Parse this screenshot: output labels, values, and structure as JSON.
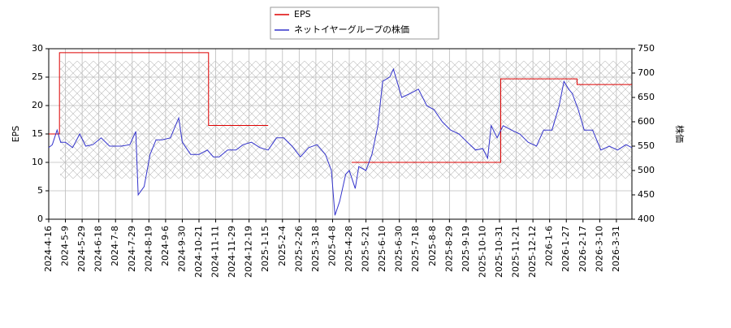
{
  "chart_data": {
    "type": "line",
    "ylabel": "EPS",
    "y2label": "株価",
    "xlim": [
      0,
      489
    ],
    "xticks": [
      {
        "value": 0,
        "label": "2024-4-16"
      },
      {
        "value": 14,
        "label": "2024-5-9"
      },
      {
        "value": 28,
        "label": "2024-5-29"
      },
      {
        "value": 42,
        "label": "2024-6-18"
      },
      {
        "value": 56,
        "label": "2024-7-8"
      },
      {
        "value": 70,
        "label": "2024-7-29"
      },
      {
        "value": 84,
        "label": "2024-8-19"
      },
      {
        "value": 98,
        "label": "2024-9-6"
      },
      {
        "value": 112,
        "label": "2024-9-30"
      },
      {
        "value": 126,
        "label": "2024-10-21"
      },
      {
        "value": 140,
        "label": "2024-11-11"
      },
      {
        "value": 154,
        "label": "2024-11-29"
      },
      {
        "value": 168,
        "label": "2024-12-19"
      },
      {
        "value": 182,
        "label": "2025-1-15"
      },
      {
        "value": 196,
        "label": "2025-2-4"
      },
      {
        "value": 210,
        "label": "2025-2-26"
      },
      {
        "value": 224,
        "label": "2025-3-18"
      },
      {
        "value": 238,
        "label": "2025-4-8"
      },
      {
        "value": 252,
        "label": "2025-4-28"
      },
      {
        "value": 266,
        "label": "2025-5-21"
      },
      {
        "value": 280,
        "label": "2025-6-10"
      },
      {
        "value": 294,
        "label": "2025-6-30"
      },
      {
        "value": 308,
        "label": "2025-7-18"
      },
      {
        "value": 322,
        "label": "2025-8-8"
      },
      {
        "value": 336,
        "label": "2025-8-29"
      },
      {
        "value": 350,
        "label": "2025-9-19"
      },
      {
        "value": 364,
        "label": "2025-10-10"
      },
      {
        "value": 378,
        "label": "2025-10-31"
      },
      {
        "value": 392,
        "label": "2025-11-21"
      },
      {
        "value": 406,
        "label": "2025-12-12"
      },
      {
        "value": 420,
        "label": "2026-1-6"
      },
      {
        "value": 434,
        "label": "2026-1-27"
      },
      {
        "value": 448,
        "label": "2026-2-17"
      },
      {
        "value": 462,
        "label": "2026-3-10"
      },
      {
        "value": 476,
        "label": "2026-3-31"
      }
    ],
    "ylim": [
      0,
      30
    ],
    "yticks": [
      0,
      5,
      10,
      15,
      20,
      25,
      30
    ],
    "y2lim": [
      400,
      750
    ],
    "y2ticks": [
      400,
      450,
      500,
      550,
      600,
      650,
      700,
      750
    ],
    "grid": true,
    "series": [
      {
        "name": "EPS",
        "color": "#dd0000",
        "x": [
          0,
          9,
          9,
          134,
          134,
          184,
          219,
          254,
          379,
          379,
          443,
          443,
          489
        ],
        "values": [
          15,
          15,
          29.3,
          29.3,
          16.5,
          16.5,
          null,
          10,
          10,
          24.7,
          24.7,
          23.7,
          23.7
        ]
      },
      {
        "name": "ネットイヤーグループの株価",
        "color": "#3333cc",
        "axis": "y2",
        "x": [
          0,
          3,
          7,
          10,
          14,
          20,
          26,
          31,
          37,
          44,
          51,
          61,
          68,
          73,
          75,
          80,
          85,
          90,
          95,
          102,
          109,
          112,
          119,
          126,
          133,
          138,
          143,
          150,
          157,
          163,
          170,
          177,
          184,
          191,
          197,
          204,
          211,
          218,
          225,
          232,
          237,
          240,
          244,
          249,
          252,
          257,
          260,
          266,
          271,
          276,
          280,
          286,
          289,
          293,
          296,
          303,
          310,
          317,
          323,
          330,
          337,
          344,
          351,
          358,
          364,
          368,
          371,
          376,
          381,
          388,
          395,
          402,
          409,
          415,
          422,
          428,
          432,
          436,
          439,
          444,
          449,
          456,
          463,
          470,
          477,
          484,
          489
        ],
        "values": [
          547,
          553,
          583,
          558,
          558,
          547,
          575,
          550,
          553,
          567,
          550,
          550,
          553,
          580,
          450,
          467,
          533,
          563,
          563,
          567,
          608,
          558,
          533,
          533,
          542,
          528,
          528,
          542,
          542,
          553,
          558,
          547,
          542,
          567,
          567,
          550,
          528,
          547,
          553,
          533,
          500,
          408,
          437,
          492,
          500,
          463,
          508,
          500,
          533,
          592,
          683,
          692,
          708,
          675,
          650,
          658,
          667,
          633,
          625,
          600,
          583,
          575,
          558,
          542,
          545,
          525,
          592,
          567,
          592,
          583,
          575,
          558,
          550,
          583,
          583,
          633,
          683,
          667,
          658,
          625,
          583,
          583,
          542,
          550,
          542,
          553,
          547
        ]
      }
    ]
  }
}
